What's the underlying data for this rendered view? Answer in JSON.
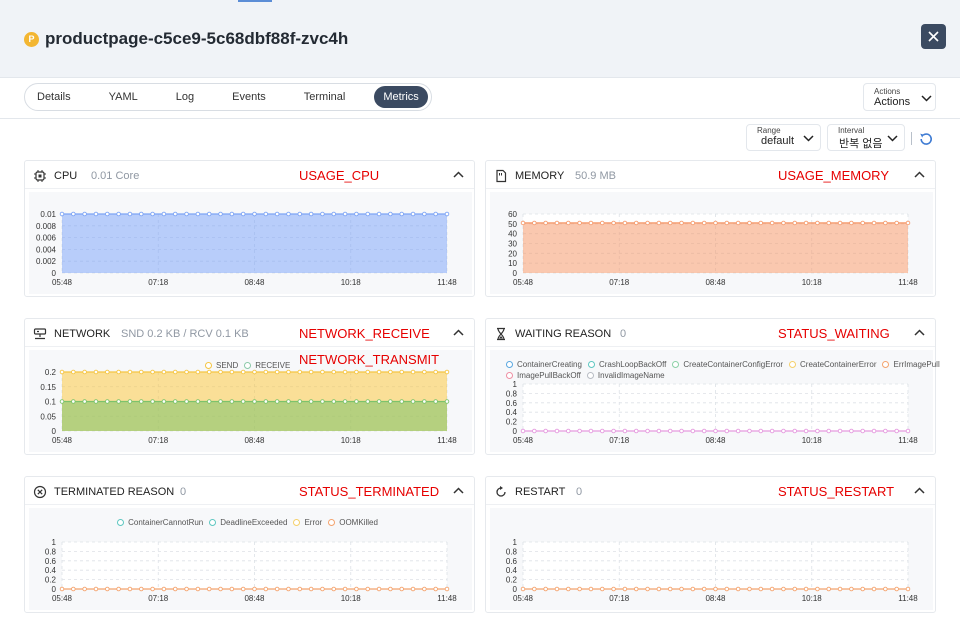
{
  "header": {
    "badge": "P",
    "title": "productpage-c5ce9-5c68dbf88f-zvc4h",
    "close_icon": "close-icon"
  },
  "tabs": [
    {
      "label": "Details",
      "active": false
    },
    {
      "label": "YAML",
      "active": false
    },
    {
      "label": "Log",
      "active": false
    },
    {
      "label": "Events",
      "active": false
    },
    {
      "label": "Terminal",
      "active": false
    },
    {
      "label": "Metrics",
      "active": true
    }
  ],
  "actions": {
    "caption": "Actions",
    "label": "Actions"
  },
  "controls": {
    "range": {
      "caption": "Range",
      "value": "default"
    },
    "interval": {
      "caption": "Interval",
      "value": "반복 없음"
    }
  },
  "x_ticks": [
    "05:48",
    "07:18",
    "08:48",
    "10:18",
    "11:48"
  ],
  "panels": {
    "cpu": {
      "title": "CPU",
      "value": "0.01 Core",
      "code": "USAGE_CPU",
      "icon": "cpu-icon"
    },
    "memory": {
      "title": "MEMORY",
      "value": "50.9 MB",
      "code": "USAGE_MEMORY",
      "icon": "memory-icon"
    },
    "network": {
      "title": "NETWORK",
      "value": "SND 0.2 KB / RCV 0.1 KB",
      "code": "NETWORK_RECEIVE",
      "code2": "NETWORK_TRANSMIT",
      "icon": "network-icon"
    },
    "waiting": {
      "title": "WAITING REASON",
      "value": "0",
      "code": "STATUS_WAITING",
      "icon": "hourglass-icon"
    },
    "terminated": {
      "title": "TERMINATED REASON",
      "value": "0",
      "code": "STATUS_TERMINATED",
      "icon": "cancel-circle-icon"
    },
    "restart": {
      "title": "RESTART",
      "value": "0",
      "code": "STATUS_RESTART",
      "icon": "restart-icon"
    }
  },
  "chart_data": [
    {
      "id": "cpu",
      "type": "area",
      "x": [
        "05:48",
        "07:18",
        "08:48",
        "10:18",
        "11:48"
      ],
      "yticks": [
        "0.01",
        "0.008",
        "0.006",
        "0.004",
        "0.002",
        "0"
      ],
      "ylim": [
        0,
        0.01
      ],
      "series": [
        {
          "values": [
            0.01,
            0.01,
            0.01,
            0.01,
            0.01
          ],
          "color": "#7da4f5"
        }
      ]
    },
    {
      "id": "memory",
      "type": "area",
      "x": [
        "05:48",
        "07:18",
        "08:48",
        "10:18",
        "11:48"
      ],
      "yticks": [
        "60",
        "50",
        "40",
        "30",
        "20",
        "10",
        "0"
      ],
      "ylim": [
        0,
        60
      ],
      "series": [
        {
          "values": [
            50.9,
            50.9,
            50.9,
            50.9,
            50.9
          ],
          "color": "#f59b6e"
        }
      ]
    },
    {
      "id": "network",
      "type": "area",
      "x": [
        "05:48",
        "07:18",
        "08:48",
        "10:18",
        "11:48"
      ],
      "yticks": [
        "0.2",
        "0.15",
        "0.1",
        "0.05",
        "0"
      ],
      "ylim": [
        0,
        0.2
      ],
      "legend": [
        {
          "name": "SEND",
          "color": "#f5c542"
        },
        {
          "name": "RECEIVE",
          "color": "#8bc9a8"
        }
      ],
      "series": [
        {
          "name": "SEND",
          "values": [
            0.2,
            0.2,
            0.2,
            0.2,
            0.2
          ],
          "color": "#f5c542"
        },
        {
          "name": "RECEIVE",
          "values": [
            0.1,
            0.1,
            0.1,
            0.1,
            0.1
          ],
          "color": "#7cc36b"
        }
      ]
    },
    {
      "id": "waiting",
      "type": "line",
      "x": [
        "05:48",
        "07:18",
        "08:48",
        "10:18",
        "11:48"
      ],
      "yticks": [
        "1",
        "0.8",
        "0.6",
        "0.4",
        "0.2",
        "0"
      ],
      "ylim": [
        0,
        1
      ],
      "legend": [
        {
          "name": "ContainerCreating",
          "color": "#5aa7e0"
        },
        {
          "name": "CrashLoopBackOff",
          "color": "#5ec7c1"
        },
        {
          "name": "CreateContainerConfigError",
          "color": "#8bd0a6"
        },
        {
          "name": "CreateContainerError",
          "color": "#f5d06b"
        },
        {
          "name": "ErrImagePull",
          "color": "#f4a36e"
        },
        {
          "name": "ImagePullBackOff",
          "color": "#ef8fa3"
        },
        {
          "name": "InvalidImageName",
          "color": "#b8bcc4"
        }
      ],
      "series": [
        {
          "values": [
            0,
            0,
            0,
            0,
            0
          ],
          "color": "#e59adf"
        }
      ]
    },
    {
      "id": "terminated",
      "type": "line",
      "x": [
        "05:48",
        "07:18",
        "08:48",
        "10:18",
        "11:48"
      ],
      "yticks": [
        "1",
        "0.8",
        "0.6",
        "0.4",
        "0.2",
        "0"
      ],
      "ylim": [
        0,
        1
      ],
      "legend": [
        {
          "name": "ContainerCannotRun",
          "color": "#5ec7c1"
        },
        {
          "name": "DeadlineExceeded",
          "color": "#5ec7c1"
        },
        {
          "name": "Error",
          "color": "#f5d06b"
        },
        {
          "name": "OOMKilled",
          "color": "#f4a36e"
        }
      ],
      "series": [
        {
          "values": [
            0,
            0,
            0,
            0,
            0
          ],
          "color": "#f4a36e"
        }
      ]
    },
    {
      "id": "restart",
      "type": "line",
      "x": [
        "05:48",
        "07:18",
        "08:48",
        "10:18",
        "11:48"
      ],
      "yticks": [
        "1",
        "0.8",
        "0.6",
        "0.4",
        "0.2",
        "0"
      ],
      "ylim": [
        0,
        1
      ],
      "series": [
        {
          "values": [
            0,
            0,
            0,
            0,
            0
          ],
          "color": "#f4a36e"
        }
      ]
    }
  ]
}
